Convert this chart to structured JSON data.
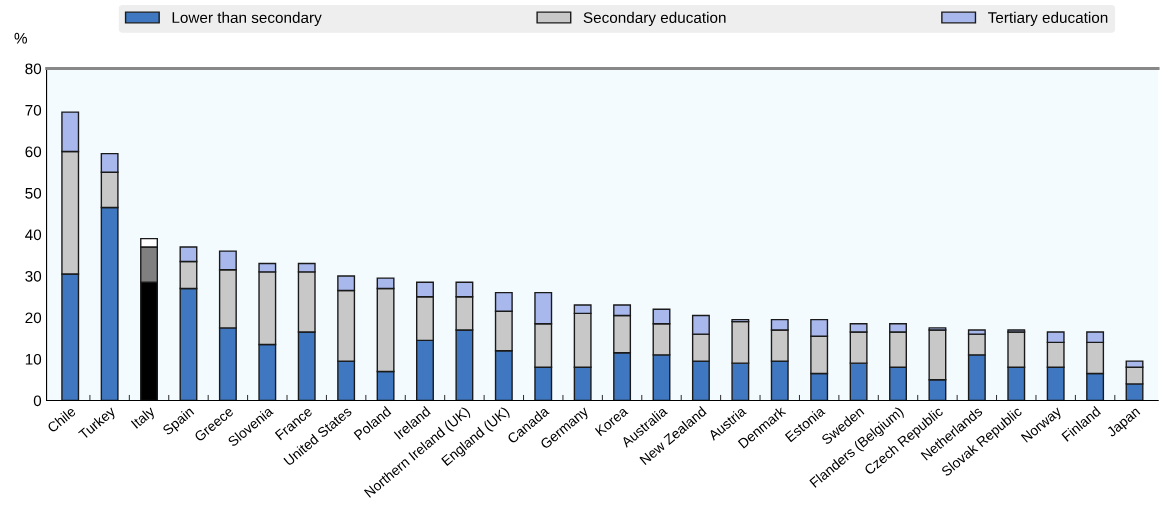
{
  "chart_data": {
    "type": "bar",
    "stacked": true,
    "ylabel": "%",
    "legend": "top",
    "grid": false,
    "categories": [
      "Chile",
      "Turkey",
      "Italy",
      "Spain",
      "Greece",
      "Slovenia",
      "France",
      "United States",
      "Poland",
      "Ireland",
      "Northern Ireland (UK)",
      "England (UK)",
      "Canada",
      "Germany",
      "Korea",
      "Australia",
      "New Zealand",
      "Austria",
      "Denmark",
      "Estonia",
      "Sweden",
      "Flanders (Belgium)",
      "Czech Republic",
      "Netherlands",
      "Slovak Republic",
      "Norway",
      "Finland",
      "Japan"
    ],
    "ylim": [
      0,
      80
    ],
    "yticks": [
      0,
      10,
      20,
      30,
      40,
      50,
      60,
      70,
      80
    ],
    "series": [
      {
        "name": "Lower than secondary",
        "color": "#3f78c0",
        "colors": [
          "#3f78c0",
          "#3f78c0",
          "#000000",
          "#3f78c0",
          "#3f78c0",
          "#3f78c0",
          "#3f78c0",
          "#3f78c0",
          "#3f78c0",
          "#3f78c0",
          "#3f78c0",
          "#3f78c0",
          "#3f78c0",
          "#3f78c0",
          "#3f78c0",
          "#3f78c0",
          "#3f78c0",
          "#3f78c0",
          "#3f78c0",
          "#3f78c0",
          "#3f78c0",
          "#3f78c0",
          "#3f78c0",
          "#3f78c0",
          "#3f78c0",
          "#3f78c0",
          "#3f78c0",
          "#3f78c0"
        ],
        "values": [
          30.5,
          46.5,
          28.5,
          27,
          17.5,
          13.5,
          16.5,
          9.5,
          7,
          14.5,
          17,
          12,
          8,
          8,
          11.5,
          11,
          9.5,
          9,
          9.5,
          6.5,
          9,
          8,
          5,
          11,
          8,
          8,
          6.5,
          4
        ]
      },
      {
        "name": "Secondary education",
        "color": "#c8c8c8",
        "colors": [
          "#c8c8c8",
          "#c8c8c8",
          "#808080",
          "#c8c8c8",
          "#c8c8c8",
          "#c8c8c8",
          "#c8c8c8",
          "#c8c8c8",
          "#c8c8c8",
          "#c8c8c8",
          "#c8c8c8",
          "#c8c8c8",
          "#c8c8c8",
          "#c8c8c8",
          "#c8c8c8",
          "#c8c8c8",
          "#c8c8c8",
          "#c8c8c8",
          "#c8c8c8",
          "#c8c8c8",
          "#c8c8c8",
          "#c8c8c8",
          "#c8c8c8",
          "#c8c8c8",
          "#c8c8c8",
          "#c8c8c8",
          "#c8c8c8",
          "#c8c8c8"
        ],
        "values": [
          29.5,
          8.5,
          8.5,
          6.5,
          14,
          17.5,
          14.5,
          17,
          20,
          10.5,
          8,
          9.5,
          10.5,
          13,
          9,
          7.5,
          6.5,
          10,
          7.5,
          9,
          7.5,
          8.5,
          12,
          5,
          8.5,
          6,
          7.5,
          4
        ]
      },
      {
        "name": "Tertiary education",
        "color": "#a9b8ec",
        "colors": [
          "#a9b8ec",
          "#a9b8ec",
          "#ffffff",
          "#a9b8ec",
          "#a9b8ec",
          "#a9b8ec",
          "#a9b8ec",
          "#a9b8ec",
          "#a9b8ec",
          "#a9b8ec",
          "#a9b8ec",
          "#a9b8ec",
          "#a9b8ec",
          "#a9b8ec",
          "#a9b8ec",
          "#a9b8ec",
          "#a9b8ec",
          "#a9b8ec",
          "#a9b8ec",
          "#a9b8ec",
          "#a9b8ec",
          "#a9b8ec",
          "#a9b8ec",
          "#a9b8ec",
          "#a9b8ec",
          "#a9b8ec",
          "#a9b8ec",
          "#a9b8ec"
        ],
        "values": [
          9.5,
          4.5,
          2,
          3.5,
          4.5,
          2,
          2,
          3.5,
          2.5,
          3.5,
          3.5,
          4.5,
          7.5,
          2,
          2.5,
          3.5,
          4.5,
          0.5,
          2.5,
          4,
          2,
          2,
          0.5,
          1,
          0.5,
          2.5,
          2.5,
          1.5
        ]
      }
    ]
  }
}
